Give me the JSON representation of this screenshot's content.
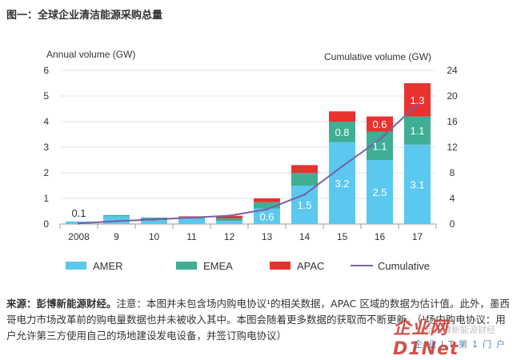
{
  "figure_title": "图一：全球企业清洁能源采购总量",
  "chart_data": {
    "type": "bar",
    "stacked": true,
    "ylabel": "Annual volume (GW)",
    "y2label": "Cumulative volume (GW)",
    "ylim": [
      0,
      6
    ],
    "y2lim": [
      0,
      24
    ],
    "yticks": [
      "0",
      "1",
      "2",
      "3",
      "4",
      "5",
      "6"
    ],
    "y2ticks": [
      "0",
      "4",
      "8",
      "12",
      "16",
      "20",
      "24"
    ],
    "categories": [
      "2008",
      "9",
      "10",
      "11",
      "12",
      "13",
      "14",
      "15",
      "16",
      "17"
    ],
    "series": [
      {
        "name": "AMER",
        "color": "#5bc8ef",
        "values": [
          0.1,
          0.3,
          0.15,
          0.2,
          0.12,
          0.6,
          1.5,
          3.2,
          2.5,
          3.1
        ]
      },
      {
        "name": "EMEA",
        "color": "#3fae94",
        "values": [
          0.0,
          0.05,
          0.1,
          0.08,
          0.1,
          0.25,
          0.5,
          0.8,
          1.1,
          1.1
        ]
      },
      {
        "name": "APAC",
        "color": "#e8322e",
        "values": [
          0.0,
          0.0,
          0.0,
          0.02,
          0.1,
          0.15,
          0.3,
          0.4,
          0.6,
          1.3
        ]
      }
    ],
    "cumulative": {
      "name": "Cumulative",
      "color": "#7b5ea7",
      "values": [
        0.1,
        0.45,
        0.7,
        1.0,
        1.3,
        2.3,
        4.6,
        9.0,
        13.2,
        18.7
      ]
    },
    "data_labels": [
      {
        "category": "2008",
        "series": "AMER",
        "text": "0.1",
        "pos": "above"
      },
      {
        "category": "13",
        "series": "AMER",
        "text": "0.6"
      },
      {
        "category": "14",
        "series": "AMER",
        "text": "1.5"
      },
      {
        "category": "15",
        "series": "AMER",
        "text": "3.2"
      },
      {
        "category": "16",
        "series": "AMER",
        "text": "2.5"
      },
      {
        "category": "17",
        "series": "AMER",
        "text": "3.1"
      },
      {
        "category": "15",
        "series": "EMEA",
        "text": "0.8"
      },
      {
        "category": "16",
        "series": "EMEA",
        "text": "1.1"
      },
      {
        "category": "17",
        "series": "EMEA",
        "text": "1.1"
      },
      {
        "category": "16",
        "series": "APAC",
        "text": "0.6"
      },
      {
        "category": "17",
        "series": "APAC",
        "text": "1.3"
      }
    ],
    "legend": [
      "AMER",
      "EMEA",
      "APAC",
      "Cumulative"
    ],
    "legend_position": "bottom",
    "grid": "horizontal"
  },
  "source": {
    "lead": "来源：彭博新能源财经。",
    "text": "注意：本图并未包含场内购电协议¹的相关数据，APAC 区域的数据为估计值。此外，墨西哥电力市场改革前的购电量数据也并未被收入其中。本图会随着更多数据的获取而不断更新。（¹场内购电协议：用户允许第三方使用自己的场地建设发电设备，并签订购电协议）"
  },
  "watermark": {
    "logo": "企业网D1Net",
    "sub": "企业IT第1门户",
    "faint": "北京彭博新能源财经"
  }
}
